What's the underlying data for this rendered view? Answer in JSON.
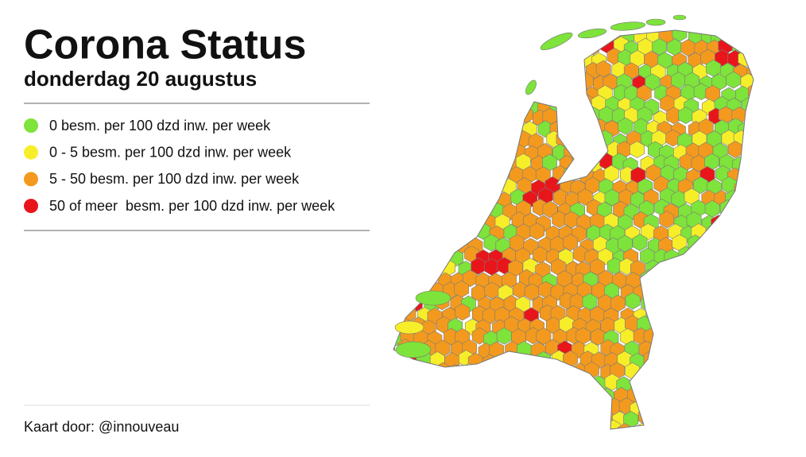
{
  "header": {
    "title": "Corona Status",
    "subtitle": "donderdag 20 augustus"
  },
  "legend": {
    "items": [
      {
        "color": "#7ee33a",
        "label": "0 besm. per 100 dzd inw. per week"
      },
      {
        "color": "#f7ee2a",
        "label": "0 - 5 besm. per 100 dzd inw. per week"
      },
      {
        "color": "#f39a1e",
        "label": "5 - 50 besm. per 100 dzd inw. per week"
      },
      {
        "color": "#e8161b",
        "label": "50 of meer  besm. per 100 dzd inw. per week"
      }
    ]
  },
  "footer": {
    "credit": "Kaart door: @innouveau"
  }
}
